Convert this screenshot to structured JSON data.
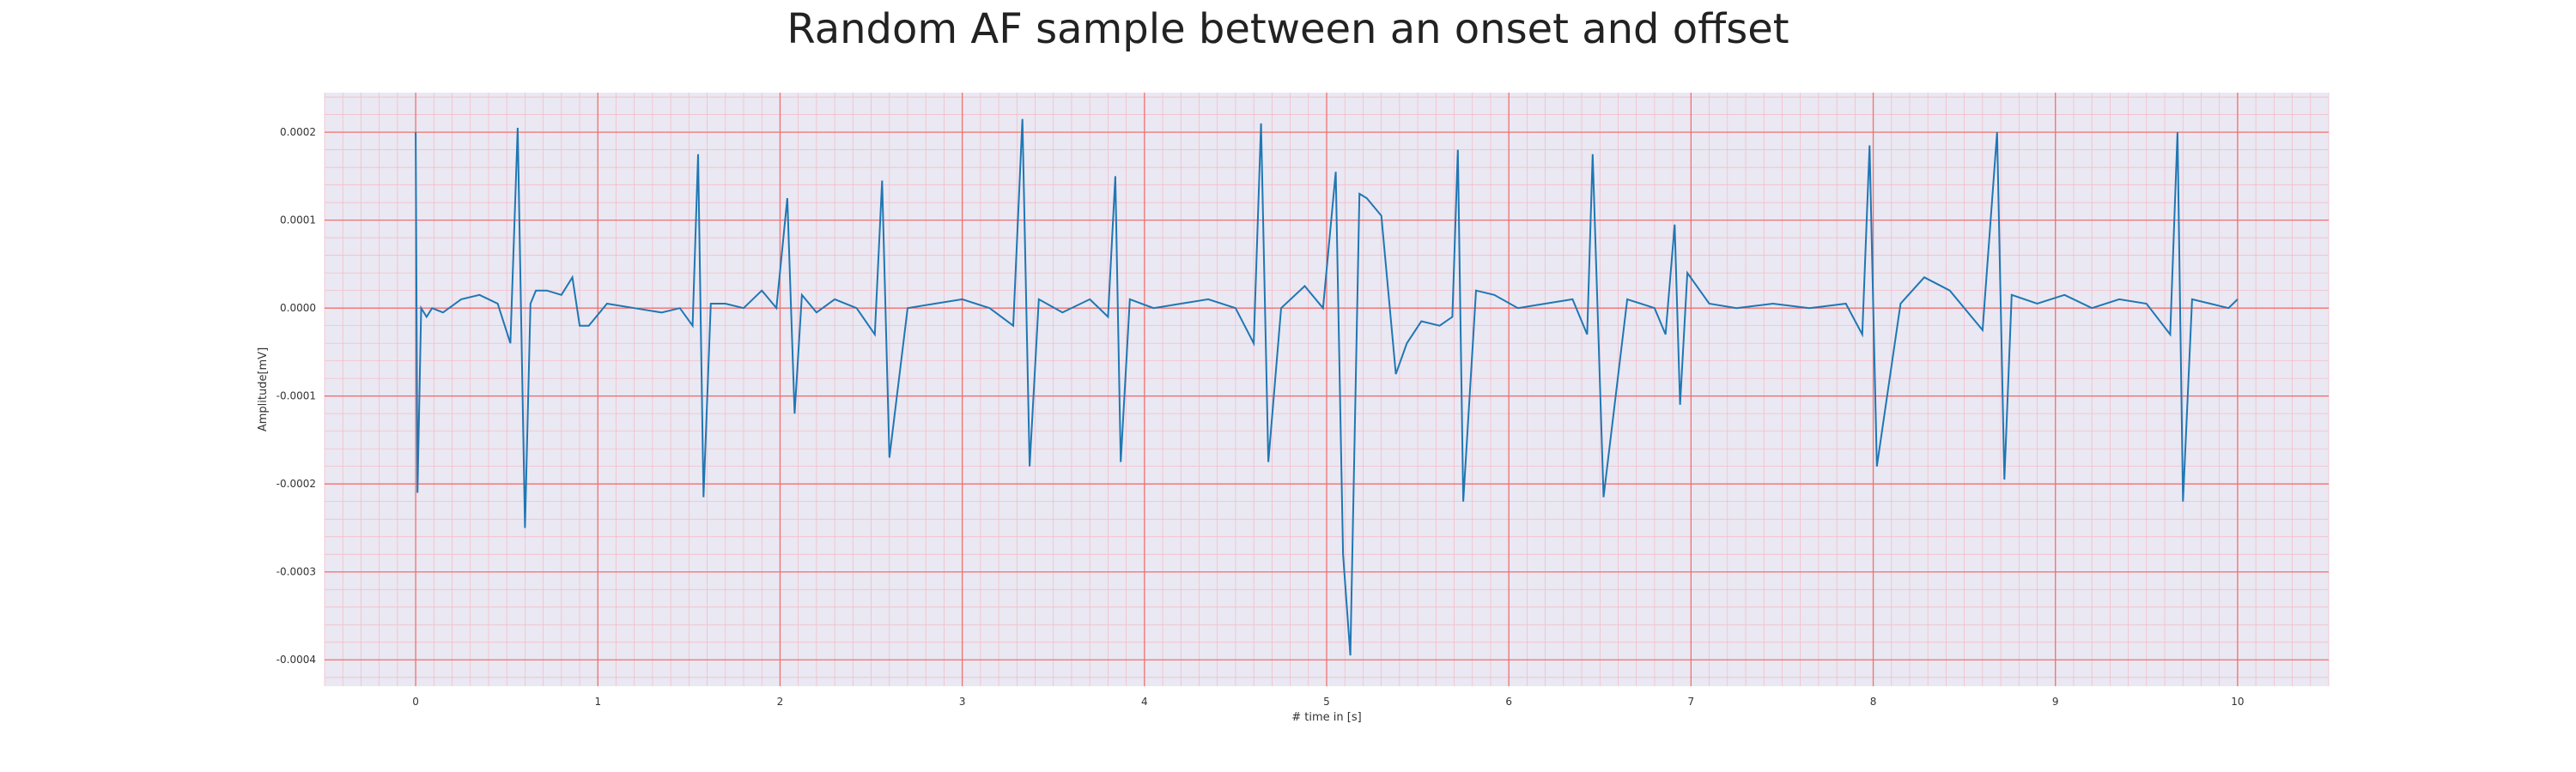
{
  "chart_data": {
    "type": "line",
    "title": "Random AF sample between an onset and offset",
    "xlabel": "# time in [s]",
    "ylabel": "Amplitude[mV]",
    "xlim": [
      -0.5,
      10.5
    ],
    "ylim": [
      -0.00043,
      0.000245
    ],
    "x_ticks": [
      "0",
      "1",
      "2",
      "3",
      "4",
      "5",
      "6",
      "7",
      "8",
      "9",
      "10"
    ],
    "y_ticks": [
      "0.0002",
      "0.0001",
      "0.0000",
      "-0.0001",
      "-0.0002",
      "-0.0003",
      "-0.0004"
    ],
    "grid": true,
    "legend": "none",
    "colors": {
      "line": "#1f77b4",
      "plot_background": "#eae8f2",
      "major_grid": "#f07070",
      "minor_grid": "#f4b8c4"
    },
    "series": [
      {
        "x": [
          0.0,
          0.01,
          0.03,
          0.06,
          0.09,
          0.15,
          0.25,
          0.35,
          0.45,
          0.52,
          0.56,
          0.6,
          0.63,
          0.66,
          0.72,
          0.8,
          0.86,
          0.9,
          0.95,
          1.05,
          1.2,
          1.35,
          1.45,
          1.52,
          1.55,
          1.58,
          1.62,
          1.7,
          1.8,
          1.9,
          1.98,
          2.04,
          2.08,
          2.12,
          2.2,
          2.3,
          2.42,
          2.52,
          2.56,
          2.6,
          2.7,
          2.85,
          3.0,
          3.15,
          3.28,
          3.33,
          3.37,
          3.42,
          3.55,
          3.7,
          3.8,
          3.84,
          3.87,
          3.92,
          4.05,
          4.2,
          4.35,
          4.5,
          4.6,
          4.64,
          4.68,
          4.75,
          4.88,
          4.98,
          5.05,
          5.09,
          5.13,
          5.18,
          5.22,
          5.3,
          5.38,
          5.44,
          5.52,
          5.62,
          5.69,
          5.72,
          5.75,
          5.82,
          5.92,
          6.05,
          6.2,
          6.35,
          6.43,
          6.46,
          6.52,
          6.65,
          6.8,
          6.86,
          6.91,
          6.94,
          6.98,
          7.1,
          7.25,
          7.45,
          7.65,
          7.85,
          7.94,
          7.98,
          8.02,
          8.15,
          8.28,
          8.42,
          8.6,
          8.68,
          8.72,
          8.76,
          8.9,
          9.05,
          9.2,
          9.35,
          9.5,
          9.63,
          9.67,
          9.7,
          9.75,
          9.85,
          9.95,
          10.0
        ],
        "y": [
          0.0002,
          -0.00021,
          0.0,
          -1e-05,
          0.0,
          -5e-06,
          1e-05,
          1.5e-05,
          5e-06,
          -4e-05,
          0.000205,
          -0.00025,
          5e-06,
          2e-05,
          2e-05,
          1.5e-05,
          3.5e-05,
          -2e-05,
          -2e-05,
          5e-06,
          0.0,
          -5e-06,
          0.0,
          -2e-05,
          0.000175,
          -0.000215,
          5e-06,
          5e-06,
          0.0,
          2e-05,
          0.0,
          0.000125,
          -0.00012,
          1.5e-05,
          -5e-06,
          1e-05,
          0.0,
          -3e-05,
          0.000145,
          -0.00017,
          0.0,
          5e-06,
          1e-05,
          0.0,
          -2e-05,
          0.000215,
          -0.00018,
          1e-05,
          -5e-06,
          1e-05,
          -1e-05,
          0.00015,
          -0.000175,
          1e-05,
          0.0,
          5e-06,
          1e-05,
          0.0,
          -4e-05,
          0.00021,
          -0.000175,
          0.0,
          2.5e-05,
          0.0,
          0.000155,
          -0.00028,
          -0.000395,
          0.00013,
          0.000125,
          0.000105,
          -7.5e-05,
          -4e-05,
          -1.5e-05,
          -2e-05,
          -1e-05,
          0.00018,
          -0.00022,
          2e-05,
          1.5e-05,
          0.0,
          5e-06,
          1e-05,
          -3e-05,
          0.000175,
          -0.000215,
          1e-05,
          0.0,
          -3e-05,
          9.5e-05,
          -0.00011,
          4e-05,
          5e-06,
          0.0,
          5e-06,
          0.0,
          5e-06,
          -3e-05,
          0.000185,
          -0.00018,
          5e-06,
          3.5e-05,
          2e-05,
          -2.5e-05,
          0.0002,
          -0.000195,
          1.5e-05,
          5e-06,
          1.5e-05,
          0.0,
          1e-05,
          5e-06,
          -3e-05,
          0.0002,
          -0.00022,
          1e-05,
          5e-06,
          0.0,
          1e-05
        ]
      }
    ]
  }
}
